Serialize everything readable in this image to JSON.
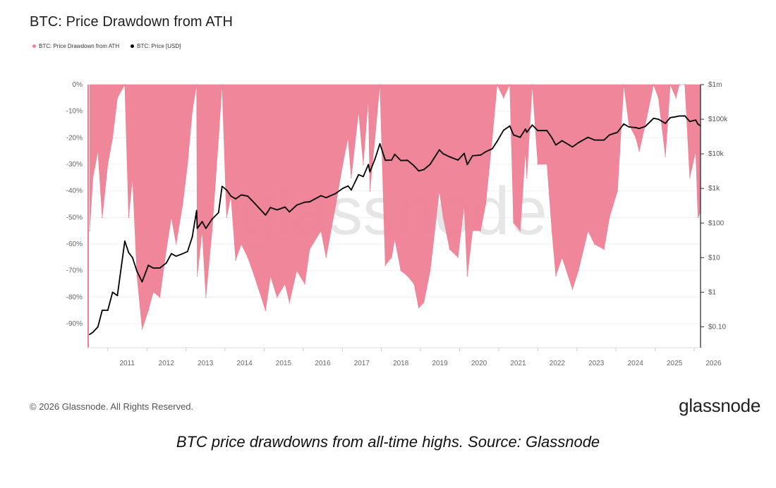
{
  "header": {
    "title": "BTC: Price Drawdown from ATH"
  },
  "legend": [
    {
      "label": "BTC: Price Drawdown from ATH",
      "color": "#ee8095"
    },
    {
      "label": "BTC: Price [USD]",
      "color": "#000000"
    }
  ],
  "footer": {
    "copyright": "© 2026 Glassnode. All Rights Reserved.",
    "brand": "glassnode"
  },
  "caption": "BTC price drawdowns from all-time highs. Source: Glassnode",
  "watermark": "glassnode",
  "chart_data": {
    "type": "area",
    "title": "BTC: Price Drawdown from ATH",
    "x_tick_labels": [
      "2011",
      "2012",
      "2013",
      "2014",
      "2015",
      "2016",
      "2017",
      "2018",
      "2019",
      "2020",
      "2021",
      "2022",
      "2023",
      "2024",
      "2025",
      "2026"
    ],
    "y_left_tick_labels": [
      "0%",
      "-10%",
      "-20%",
      "-30%",
      "-40%",
      "-50%",
      "-60%",
      "-70%",
      "-80%",
      "-90%"
    ],
    "y_left_range": [
      -0.99,
      0
    ],
    "y_right_tick_labels": [
      "$1m",
      "$100k",
      "$10k",
      "$1k",
      "$100",
      "$10",
      "$1",
      "$0.10"
    ],
    "y_right_scale": "log",
    "y_right_range": [
      0.025,
      1000000
    ],
    "x_range": [
      "2010-07-15",
      "2026-03-01"
    ],
    "grid": true,
    "legend_position": "top-left",
    "series": [
      {
        "name": "BTC: Price Drawdown from ATH",
        "color": "#ee8095",
        "axis": "left",
        "x": [
          "2010-07-15",
          "2010-08-15",
          "2010-10-01",
          "2010-11-10",
          "2011-01-01",
          "2011-02-15",
          "2011-04-01",
          "2011-06-09",
          "2011-07-15",
          "2011-08-20",
          "2011-10-01",
          "2011-11-18",
          "2012-01-15",
          "2012-03-01",
          "2012-05-01",
          "2012-07-01",
          "2012-08-17",
          "2012-10-01",
          "2012-12-01",
          "2013-01-15",
          "2013-03-01",
          "2013-04-10",
          "2013-04-16",
          "2013-06-01",
          "2013-07-05",
          "2013-09-01",
          "2013-11-01",
          "2013-12-04",
          "2014-01-15",
          "2014-02-25",
          "2014-04-10",
          "2014-06-01",
          "2014-08-01",
          "2014-10-01",
          "2015-01-14",
          "2015-03-01",
          "2015-05-01",
          "2015-07-15",
          "2015-08-25",
          "2015-11-01",
          "2016-01-15",
          "2016-03-01",
          "2016-06-15",
          "2016-08-02",
          "2016-11-01",
          "2017-01-04",
          "2017-02-23",
          "2017-03-25",
          "2017-06-01",
          "2017-07-15",
          "2017-09-01",
          "2017-09-15",
          "2017-11-01",
          "2017-12-17",
          "2018-02-06",
          "2018-04-06",
          "2018-05-05",
          "2018-07-01",
          "2018-09-01",
          "2018-11-01",
          "2018-12-15",
          "2019-02-01",
          "2019-04-01",
          "2019-06-26",
          "2019-08-01",
          "2019-10-01",
          "2019-12-17",
          "2020-02-13",
          "2020-03-13",
          "2020-05-01",
          "2020-07-15",
          "2020-09-01",
          "2020-11-01",
          "2020-12-17",
          "2021-02-15",
          "2021-04-14",
          "2021-05-19",
          "2021-07-20",
          "2021-09-07",
          "2021-09-20",
          "2021-11-10",
          "2022-01-01",
          "2022-03-28",
          "2022-05-12",
          "2022-06-18",
          "2022-08-15",
          "2022-11-21",
          "2023-01-15",
          "2023-04-15",
          "2023-06-15",
          "2023-09-11",
          "2023-11-01",
          "2024-01-15",
          "2024-03-14",
          "2024-05-01",
          "2024-07-05",
          "2024-08-05",
          "2024-10-01",
          "2024-12-17",
          "2025-02-01",
          "2025-04-07",
          "2025-05-22",
          "2025-07-15",
          "2025-08-14",
          "2025-10-06",
          "2025-11-21",
          "2026-01-15",
          "2026-02-05",
          "2026-03-01"
        ],
        "values": [
          -0.55,
          -0.35,
          -0.25,
          -0.5,
          -0.3,
          -0.2,
          -0.05,
          0,
          -0.5,
          -0.35,
          -0.72,
          -0.92,
          -0.85,
          -0.78,
          -0.8,
          -0.62,
          -0.5,
          -0.6,
          -0.45,
          -0.3,
          -0.1,
          0,
          -0.72,
          -0.55,
          -0.8,
          -0.55,
          -0.2,
          0,
          -0.5,
          -0.42,
          -0.66,
          -0.6,
          -0.65,
          -0.72,
          -0.85,
          -0.72,
          -0.8,
          -0.75,
          -0.82,
          -0.7,
          -0.75,
          -0.62,
          -0.55,
          -0.65,
          -0.45,
          -0.3,
          -0.2,
          -0.35,
          -0.1,
          -0.3,
          -0.05,
          -0.4,
          -0.2,
          0,
          -0.68,
          -0.65,
          -0.58,
          -0.7,
          -0.72,
          -0.75,
          -0.84,
          -0.82,
          -0.7,
          -0.4,
          -0.5,
          -0.62,
          -0.65,
          -0.45,
          -0.72,
          -0.55,
          -0.55,
          -0.45,
          -0.2,
          0,
          -0.05,
          0,
          -0.52,
          -0.55,
          -0.25,
          -0.35,
          0,
          -0.3,
          -0.3,
          -0.55,
          -0.72,
          -0.65,
          -0.77,
          -0.7,
          -0.55,
          -0.6,
          -0.62,
          -0.5,
          -0.4,
          0,
          -0.15,
          -0.2,
          -0.25,
          -0.15,
          0,
          -0.05,
          -0.27,
          0,
          -0.05,
          0,
          0,
          -0.35,
          -0.25,
          -0.5,
          -0.48
        ]
      },
      {
        "name": "BTC: Price [USD]",
        "color": "#000000",
        "axis": "right",
        "x": [
          "2010-07-15",
          "2010-08-15",
          "2010-10-01",
          "2010-11-10",
          "2011-01-01",
          "2011-02-15",
          "2011-04-01",
          "2011-06-09",
          "2011-07-15",
          "2011-08-20",
          "2011-10-01",
          "2011-11-18",
          "2012-01-15",
          "2012-03-01",
          "2012-05-01",
          "2012-07-01",
          "2012-08-17",
          "2012-10-01",
          "2012-12-01",
          "2013-01-15",
          "2013-03-01",
          "2013-04-10",
          "2013-04-16",
          "2013-06-01",
          "2013-07-05",
          "2013-09-01",
          "2013-11-01",
          "2013-12-04",
          "2014-01-15",
          "2014-02-25",
          "2014-04-10",
          "2014-06-01",
          "2014-08-01",
          "2014-10-01",
          "2015-01-14",
          "2015-03-01",
          "2015-05-01",
          "2015-07-15",
          "2015-08-25",
          "2015-11-01",
          "2016-01-15",
          "2016-03-01",
          "2016-06-15",
          "2016-08-02",
          "2016-11-01",
          "2017-01-04",
          "2017-02-23",
          "2017-03-25",
          "2017-06-01",
          "2017-07-15",
          "2017-09-01",
          "2017-09-15",
          "2017-11-01",
          "2017-12-17",
          "2018-02-06",
          "2018-04-06",
          "2018-05-05",
          "2018-07-01",
          "2018-09-01",
          "2018-11-01",
          "2018-12-15",
          "2019-02-01",
          "2019-04-01",
          "2019-06-26",
          "2019-08-01",
          "2019-10-01",
          "2019-12-17",
          "2020-02-13",
          "2020-03-13",
          "2020-05-01",
          "2020-07-15",
          "2020-09-01",
          "2020-11-01",
          "2020-12-17",
          "2021-02-15",
          "2021-04-14",
          "2021-05-19",
          "2021-07-20",
          "2021-09-07",
          "2021-09-20",
          "2021-11-10",
          "2022-01-01",
          "2022-03-28",
          "2022-05-12",
          "2022-06-18",
          "2022-08-15",
          "2022-11-21",
          "2023-01-15",
          "2023-04-15",
          "2023-06-15",
          "2023-09-11",
          "2023-11-01",
          "2024-01-15",
          "2024-03-14",
          "2024-05-01",
          "2024-07-05",
          "2024-08-05",
          "2024-10-01",
          "2024-12-17",
          "2025-02-01",
          "2025-04-07",
          "2025-05-22",
          "2025-07-15",
          "2025-08-14",
          "2025-10-06",
          "2025-11-21",
          "2026-01-15",
          "2026-02-05",
          "2026-03-01"
        ],
        "values": [
          0.06,
          0.07,
          0.1,
          0.3,
          0.3,
          1,
          0.8,
          30,
          14,
          10,
          4,
          2,
          6,
          5,
          5,
          7,
          13,
          11,
          13,
          15,
          40,
          230,
          70,
          110,
          70,
          130,
          200,
          1150,
          900,
          600,
          500,
          650,
          600,
          380,
          170,
          280,
          240,
          290,
          210,
          330,
          400,
          410,
          620,
          540,
          720,
          1000,
          1180,
          900,
          2500,
          2200,
          4900,
          3000,
          7000,
          19500,
          6500,
          6600,
          9700,
          6400,
          6500,
          4500,
          3200,
          3500,
          5000,
          13000,
          10000,
          8200,
          6600,
          10300,
          4900,
          8800,
          9200,
          11500,
          14000,
          23000,
          48000,
          64000,
          35000,
          30000,
          52000,
          42000,
          68000,
          47000,
          47000,
          29000,
          18000,
          24000,
          15800,
          21000,
          30000,
          25000,
          25000,
          35000,
          42000,
          73000,
          60000,
          57000,
          54000,
          62000,
          106000,
          100000,
          76000,
          111000,
          118000,
          124000,
          125000,
          86000,
          95000,
          72000,
          65000
        ]
      }
    ]
  }
}
